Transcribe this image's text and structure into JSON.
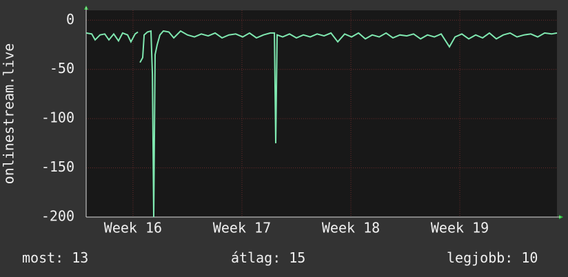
{
  "chart_data": {
    "type": "line",
    "y_label": "onlinestream.live",
    "x": [
      15.57,
      15.621,
      15.652,
      15.697,
      15.741,
      15.779,
      15.823,
      15.867,
      15.905,
      15.95,
      15.981,
      16.019,
      16.045,
      16.057,
      16.064,
      16.089,
      16.102,
      16.133,
      16.165,
      16.178,
      16.19,
      16.203,
      16.222,
      16.247,
      16.279,
      16.329,
      16.374,
      16.437,
      16.5,
      16.564,
      16.627,
      16.69,
      16.754,
      16.817,
      16.88,
      16.943,
      17.007,
      17.07,
      17.133,
      17.197,
      17.26,
      17.298,
      17.31,
      17.323,
      17.374,
      17.437,
      17.5,
      17.564,
      17.627,
      17.69,
      17.754,
      17.817,
      17.88,
      17.943,
      18.006,
      18.07,
      18.133,
      18.196,
      18.26,
      18.323,
      18.386,
      18.45,
      18.513,
      18.576,
      18.64,
      18.703,
      18.766,
      18.829,
      18.905,
      18.956,
      19.019,
      19.082,
      19.146,
      19.209,
      19.272,
      19.335,
      19.399,
      19.462,
      19.525,
      19.589,
      19.652,
      19.715,
      19.779,
      19.842,
      19.892
    ],
    "series": [
      {
        "name": "onlinestream.live",
        "color": "#7fe8b0",
        "values": [
          -13,
          -14,
          -20,
          -15,
          -14,
          -20,
          -14,
          -21,
          -13,
          -15,
          -22,
          -14,
          -12,
          null,
          -43,
          -38,
          -15,
          -12,
          -11,
          -55,
          -200,
          -35,
          -25,
          -15,
          -11,
          -12,
          -18,
          -11,
          -15,
          -17,
          -14,
          -16,
          -13,
          -18,
          -15,
          -14,
          -17,
          -13,
          -18,
          -15,
          -13,
          -13,
          -125,
          -15,
          -17,
          -14,
          -18,
          -15,
          -17,
          -14,
          -16,
          -13,
          -22,
          -14,
          -17,
          -13,
          -19,
          -15,
          -17,
          -13,
          -18,
          -15,
          -16,
          -14,
          -19,
          -15,
          -17,
          -14,
          -27,
          -17,
          -14,
          -19,
          -15,
          -18,
          -13,
          -19,
          -15,
          -13,
          -17,
          -15,
          -14,
          -17,
          -13,
          -14,
          -13
        ]
      }
    ],
    "xlim": [
      15.57,
      19.892
    ],
    "xticks": [
      {
        "value": 16,
        "label": "Week 16"
      },
      {
        "value": 17,
        "label": "Week 17"
      },
      {
        "value": 18,
        "label": "Week 18"
      },
      {
        "value": 19,
        "label": "Week 19"
      }
    ],
    "ylim": [
      -200,
      10
    ],
    "yticks": [
      0,
      -50,
      -100,
      -150,
      -200
    ],
    "grid": true,
    "stats": [
      {
        "label": "most:",
        "value": 13
      },
      {
        "label": "átlag:",
        "value": 15
      },
      {
        "label": "legjobb:",
        "value": 10
      }
    ]
  }
}
